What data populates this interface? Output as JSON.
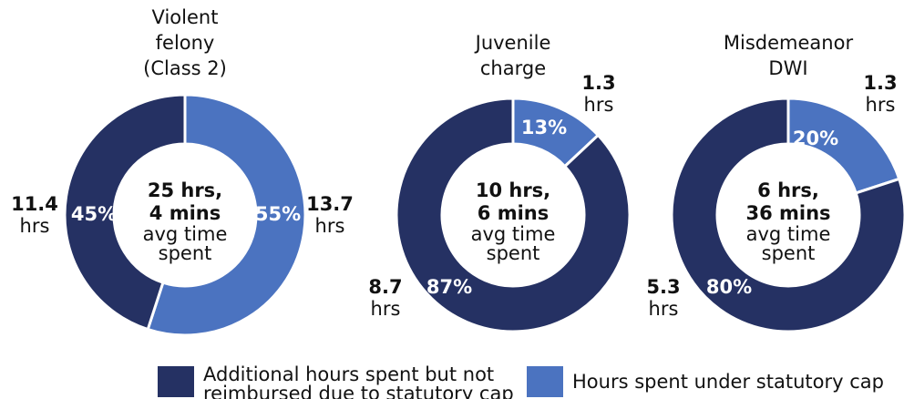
{
  "legend": [
    {
      "name": [
        "Additional hours spent but not",
        "reimbursed due to statutory cap"
      ],
      "color": "#253163"
    },
    {
      "name": "Hours spent under statutory cap",
      "color": "#4b73c0"
    }
  ],
  "hours_unit": "hrs",
  "chart_data": [
    {
      "type": "pie",
      "donut": true,
      "title": [
        "Violent",
        "felony",
        "(Class 2)"
      ],
      "center_bold": [
        "25 hrs,",
        "4 mins"
      ],
      "center_note": [
        "avg time",
        "spent"
      ],
      "values": [
        45,
        55
      ],
      "value_labels": [
        "45%",
        "55%"
      ],
      "hours": [
        11.4,
        13.7
      ]
    },
    {
      "type": "pie",
      "donut": true,
      "title": [
        "Juvenile",
        "charge"
      ],
      "center_bold": [
        "10 hrs,",
        "6 mins"
      ],
      "center_note": [
        "avg time",
        "spent"
      ],
      "values": [
        87,
        13
      ],
      "value_labels": [
        "87%",
        "13%"
      ],
      "hours": [
        8.7,
        1.3
      ]
    },
    {
      "type": "pie",
      "donut": true,
      "title": [
        "Misdemeanor",
        "DWI"
      ],
      "center_bold": [
        "6 hrs,",
        "36 mins"
      ],
      "center_note": [
        "avg time",
        "spent"
      ],
      "values": [
        80,
        20
      ],
      "value_labels": [
        "80%",
        "20%"
      ],
      "hours": [
        5.3,
        1.3
      ]
    }
  ]
}
